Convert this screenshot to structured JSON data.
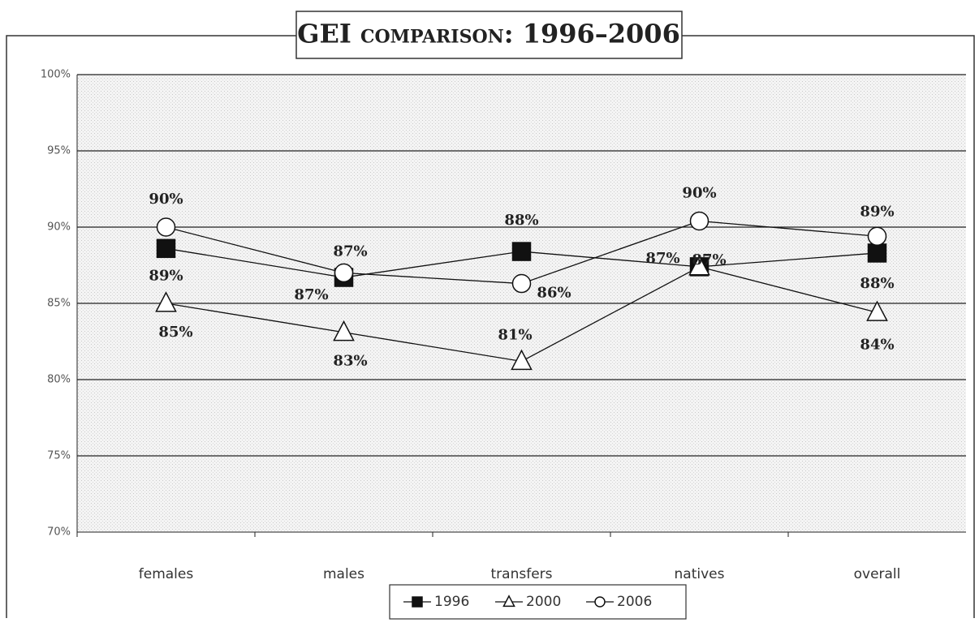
{
  "chart_data": {
    "type": "line",
    "title": "GEI comparison: 1996–2006",
    "categories": [
      "females",
      "males",
      "transfers",
      "natives",
      "overall"
    ],
    "ylim": [
      70,
      100
    ],
    "yticks": [
      {
        "value": 70,
        "label": "70%"
      },
      {
        "value": 75,
        "label": "75%"
      },
      {
        "value": 80,
        "label": "80%"
      },
      {
        "value": 85,
        "label": "85%"
      },
      {
        "value": 90,
        "label": "90%"
      },
      {
        "value": 95,
        "label": "95%"
      },
      {
        "value": 100,
        "label": "100%"
      }
    ],
    "grid": true,
    "series": [
      {
        "name": "1996",
        "color": "#111111",
        "marker": "square",
        "values": [
          88.6,
          86.7,
          88.4,
          87.4,
          88.3
        ],
        "value_labels": [
          "89%",
          "87%",
          "88%",
          "87%",
          "88%"
        ]
      },
      {
        "name": "2000",
        "color": "#111111",
        "marker": "triangle",
        "values": [
          85.0,
          83.1,
          81.2,
          87.4,
          84.4
        ],
        "value_labels": [
          "85%",
          "83%",
          "81%",
          "87%",
          "84%"
        ]
      },
      {
        "name": "2006",
        "color": "#111111",
        "marker": "circle",
        "values": [
          90.0,
          87.0,
          86.3,
          90.4,
          89.4
        ],
        "value_labels": [
          "90%",
          "87%",
          "86%",
          "90%",
          "89%"
        ]
      }
    ]
  }
}
